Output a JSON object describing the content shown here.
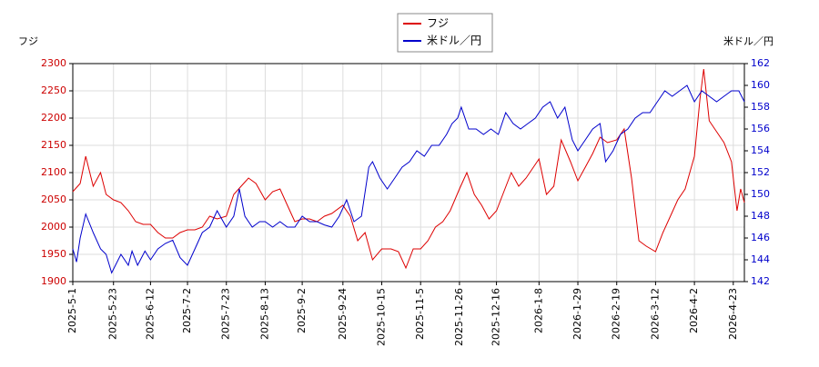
{
  "chart_data": {
    "type": "line",
    "ylabel": "フジ",
    "y2label": "米ドル／円",
    "ylim": [
      1900,
      2300
    ],
    "yticks": [
      1900,
      1950,
      2000,
      2050,
      2100,
      2150,
      2200,
      2250,
      2300
    ],
    "y2lim": [
      142,
      162
    ],
    "y2ticks": [
      142,
      144,
      146,
      148,
      150,
      152,
      154,
      156,
      158,
      160,
      162
    ],
    "xlim": [
      "2025-5-1",
      "2026-4-29"
    ],
    "xticks": [
      "2025-5-1",
      "2025-5-23",
      "2025-6-12",
      "2025-7-2",
      "2025-7-23",
      "2025-8-13",
      "2025-9-2",
      "2025-9-24",
      "2025-10-15",
      "2025-11-5",
      "2025-11-26",
      "2025-12-16",
      "2026-1-8",
      "2026-1-29",
      "2026-2-19",
      "2026-3-12",
      "2026-4-2",
      "2026-4-23"
    ],
    "grid": true,
    "legend": "top",
    "series": [
      {
        "name": "フジ",
        "color": "#dd0000",
        "x": [
          "2025-5-1",
          "2025-5-5",
          "2025-5-8",
          "2025-5-12",
          "2025-5-16",
          "2025-5-19",
          "2025-5-23",
          "2025-5-27",
          "2025-5-31",
          "2025-6-4",
          "2025-6-8",
          "2025-6-12",
          "2025-6-16",
          "2025-6-20",
          "2025-6-24",
          "2025-6-28",
          "2025-7-2",
          "2025-7-6",
          "2025-7-10",
          "2025-7-14",
          "2025-7-18",
          "2025-7-23",
          "2025-7-27",
          "2025-7-31",
          "2025-8-4",
          "2025-8-8",
          "2025-8-13",
          "2025-8-17",
          "2025-8-21",
          "2025-8-25",
          "2025-8-29",
          "2025-9-2",
          "2025-9-6",
          "2025-9-10",
          "2025-9-14",
          "2025-9-18",
          "2025-9-24",
          "2025-9-28",
          "2025-10-2",
          "2025-10-6",
          "2025-10-10",
          "2025-10-15",
          "2025-10-20",
          "2025-10-24",
          "2025-10-28",
          "2025-11-1",
          "2025-11-5",
          "2025-11-9",
          "2025-11-13",
          "2025-11-17",
          "2025-11-21",
          "2025-11-26",
          "2025-11-30",
          "2025-12-4",
          "2025-12-8",
          "2025-12-12",
          "2025-12-16",
          "2025-12-20",
          "2025-12-24",
          "2025-12-28",
          "2026-1-1",
          "2026-1-5",
          "2026-1-8",
          "2026-1-12",
          "2026-1-16",
          "2026-1-20",
          "2026-1-25",
          "2026-1-29",
          "2026-2-2",
          "2026-2-6",
          "2026-2-10",
          "2026-2-14",
          "2026-2-19",
          "2026-2-23",
          "2026-2-27",
          "2026-3-3",
          "2026-3-7",
          "2026-3-12",
          "2026-3-16",
          "2026-3-20",
          "2026-3-24",
          "2026-3-28",
          "2026-4-2",
          "2026-4-5",
          "2026-4-7",
          "2026-4-10",
          "2026-4-14",
          "2026-4-18",
          "2026-4-22",
          "2026-4-25",
          "2026-4-27",
          "2026-4-29"
        ],
        "values": [
          2065,
          2080,
          2130,
          2075,
          2100,
          2060,
          2050,
          2045,
          2030,
          2010,
          2005,
          2005,
          1990,
          1980,
          1980,
          1990,
          1995,
          1995,
          2000,
          2020,
          2015,
          2020,
          2060,
          2075,
          2090,
          2080,
          2050,
          2065,
          2070,
          2040,
          2010,
          2015,
          2015,
          2010,
          2020,
          2025,
          2040,
          2020,
          1975,
          1990,
          1940,
          1960,
          1960,
          1955,
          1925,
          1960,
          1960,
          1975,
          2000,
          2010,
          2030,
          2070,
          2100,
          2060,
          2040,
          2015,
          2030,
          2065,
          2100,
          2075,
          2090,
          2110,
          2125,
          2060,
          2075,
          2160,
          2120,
          2085,
          2110,
          2135,
          2165,
          2155,
          2160,
          2180,
          2090,
          1975,
          1965,
          1955,
          1990,
          2020,
          2050,
          2070,
          2130,
          2235,
          2290,
          2195,
          2175,
          2155,
          2120,
          2030,
          2070,
          2045
        ]
      },
      {
        "name": "米ドル／円",
        "color": "#0000cc",
        "axis": "y2",
        "x": [
          "2025-5-1",
          "2025-5-3",
          "2025-5-5",
          "2025-5-8",
          "2025-5-12",
          "2025-5-16",
          "2025-5-19",
          "2025-5-22",
          "2025-5-27",
          "2025-5-31",
          "2025-6-2",
          "2025-6-5",
          "2025-6-9",
          "2025-6-12",
          "2025-6-16",
          "2025-6-20",
          "2025-6-24",
          "2025-6-28",
          "2025-7-2",
          "2025-7-6",
          "2025-7-10",
          "2025-7-14",
          "2025-7-18",
          "2025-7-23",
          "2025-7-27",
          "2025-7-30",
          "2025-8-2",
          "2025-8-6",
          "2025-8-10",
          "2025-8-13",
          "2025-8-17",
          "2025-8-21",
          "2025-8-25",
          "2025-8-29",
          "2025-9-2",
          "2025-9-6",
          "2025-9-10",
          "2025-9-14",
          "2025-9-18",
          "2025-9-22",
          "2025-9-26",
          "2025-9-30",
          "2025-10-4",
          "2025-10-8",
          "2025-10-10",
          "2025-10-14",
          "2025-10-18",
          "2025-10-22",
          "2025-10-26",
          "2025-10-30",
          "2025-11-3",
          "2025-11-7",
          "2025-11-11",
          "2025-11-15",
          "2025-11-19",
          "2025-11-22",
          "2025-11-25",
          "2025-11-27",
          "2025-12-1",
          "2025-12-5",
          "2025-12-9",
          "2025-12-13",
          "2025-12-17",
          "2025-12-21",
          "2025-12-25",
          "2025-12-29",
          "2026-1-2",
          "2026-1-6",
          "2026-1-10",
          "2026-1-14",
          "2026-1-18",
          "2026-1-22",
          "2026-1-26",
          "2026-1-29",
          "2026-2-2",
          "2026-2-6",
          "2026-2-10",
          "2026-2-13",
          "2026-2-17",
          "2026-2-21",
          "2026-2-25",
          "2026-3-1",
          "2026-3-5",
          "2026-3-9",
          "2026-3-13",
          "2026-3-17",
          "2026-3-21",
          "2026-3-25",
          "2026-3-29",
          "2026-4-2",
          "2026-4-6",
          "2026-4-10",
          "2026-4-14",
          "2026-4-18",
          "2026-4-22",
          "2026-4-26",
          "2026-4-29"
        ],
        "values": [
          145,
          143.8,
          146,
          148.2,
          146.5,
          145,
          144.5,
          142.8,
          144.5,
          143.5,
          144.8,
          143.5,
          144.8,
          144,
          145,
          145.5,
          145.8,
          144.2,
          143.5,
          145,
          146.5,
          147,
          148.5,
          147,
          148,
          150.5,
          148,
          147,
          147.5,
          147.5,
          147,
          147.5,
          147,
          147,
          148,
          147.5,
          147.5,
          147.2,
          147,
          148,
          149.5,
          147.5,
          148,
          152.5,
          153,
          151.5,
          150.5,
          151.5,
          152.5,
          153,
          154,
          153.5,
          154.5,
          154.5,
          155.5,
          156.5,
          157,
          158,
          156,
          156,
          155.5,
          156,
          155.5,
          157.5,
          156.5,
          156,
          156.5,
          157,
          158,
          158.5,
          157,
          158,
          155,
          154,
          155,
          156,
          156.5,
          153,
          154,
          155.5,
          156,
          157,
          157.5,
          157.5,
          158.5,
          159.5,
          159,
          159.5,
          160,
          158.5,
          159.5,
          159,
          158.5,
          159,
          159.5,
          159.5,
          158.5
        ]
      }
    ]
  }
}
